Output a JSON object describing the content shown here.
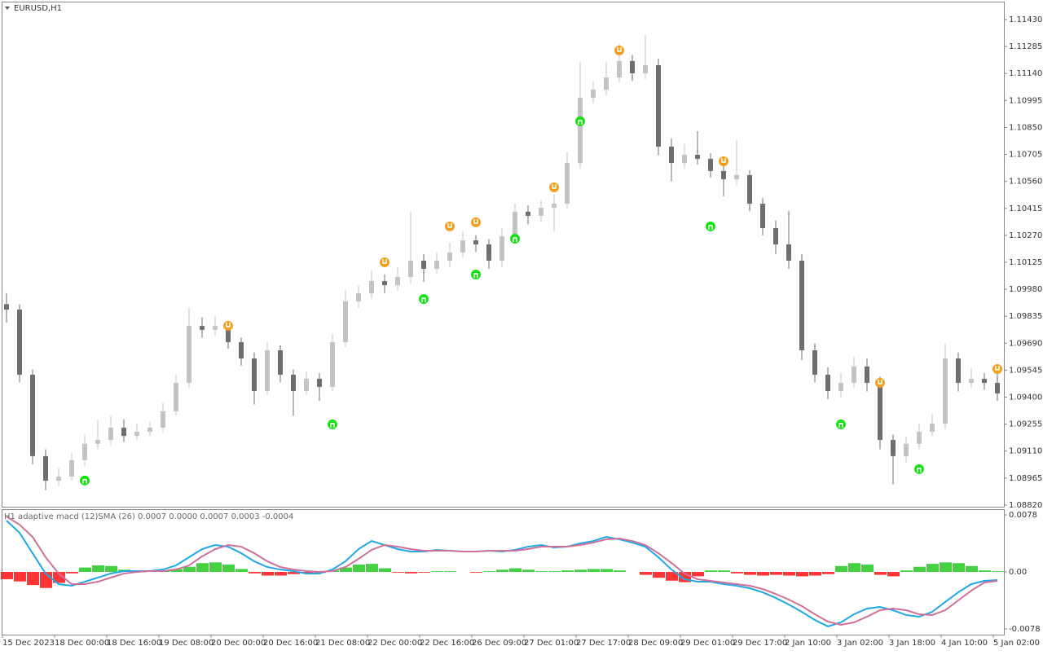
{
  "chart_data": [
    {
      "type": "candlestick",
      "title": "EURUSD,H1",
      "colors": {
        "up": "#c4c4c4",
        "down": "#6f6f6f",
        "signal_up": "#16e316",
        "signal_down": "#f0a020"
      },
      "ylim": [
        1.08811,
        1.11522
      ],
      "yticks": [
        {
          "value": 1.0882,
          "label": "1.08820"
        },
        1.08965,
        {
          "value": 1.0911,
          "label": "1.09110"
        },
        1.09255,
        {
          "value": 1.094,
          "label": "1.09400"
        },
        1.09545,
        {
          "value": 1.0969,
          "label": "1.09690"
        },
        1.09835,
        {
          "value": 1.0998,
          "label": "1.09980"
        },
        1.10125,
        {
          "value": 1.1027,
          "label": "1.10270"
        },
        1.10415,
        {
          "value": 1.1056,
          "label": "1.10560"
        },
        1.10705,
        {
          "value": 1.1085,
          "label": "1.10850"
        },
        1.10995,
        {
          "value": 1.1114,
          "label": "1.11140"
        },
        1.11285,
        {
          "value": 1.1143,
          "label": "1.11430"
        }
      ],
      "candles": [
        [
          1.099,
          1.0996,
          1.098,
          1.09871
        ],
        [
          1.09871,
          1.099,
          1.0948,
          1.09521
        ],
        [
          1.09521,
          1.0955,
          1.0904,
          1.09083
        ],
        [
          1.09083,
          1.0912,
          1.089,
          1.08951
        ],
        [
          1.08951,
          1.0902,
          1.0892,
          1.08973
        ],
        [
          1.08973,
          1.091,
          1.0895,
          1.09061
        ],
        [
          1.09061,
          1.092,
          1.0903,
          1.09149
        ],
        [
          1.09149,
          1.0928,
          1.0912,
          1.0917
        ],
        [
          1.0917,
          1.093,
          1.0914,
          1.09236
        ],
        [
          1.09236,
          1.0928,
          1.0916,
          1.09192
        ],
        [
          1.09192,
          1.0926,
          1.0917,
          1.09214
        ],
        [
          1.09214,
          1.0927,
          1.0919,
          1.09236
        ],
        [
          1.09236,
          1.0937,
          1.0921,
          1.09324
        ],
        [
          1.09324,
          1.0952,
          1.093,
          1.09477
        ],
        [
          1.09477,
          1.0988,
          1.0945,
          1.09783
        ],
        [
          1.09783,
          1.0983,
          1.0972,
          1.09762
        ],
        [
          1.09762,
          1.0984,
          1.0973,
          1.09783
        ],
        [
          1.09783,
          1.0981,
          1.0966,
          1.09696
        ],
        [
          1.09696,
          1.0972,
          1.0957,
          1.09608
        ],
        [
          1.09608,
          1.0964,
          1.0936,
          1.09433
        ],
        [
          1.09433,
          1.097,
          1.0941,
          1.09652
        ],
        [
          1.09652,
          1.0968,
          1.0948,
          1.09521
        ],
        [
          1.09521,
          1.0955,
          1.093,
          1.09433
        ],
        [
          1.09433,
          1.0954,
          1.0941,
          1.09499
        ],
        [
          1.09499,
          1.0953,
          1.0938,
          1.09455
        ],
        [
          1.09455,
          1.0974,
          1.0943,
          1.09696
        ],
        [
          1.09696,
          1.0998,
          1.0967,
          1.09915
        ],
        [
          1.09915,
          1.1,
          1.0988,
          1.09959
        ],
        [
          1.09959,
          1.1008,
          1.0993,
          1.10024
        ],
        [
          1.10024,
          1.1006,
          1.0996,
          1.10002
        ],
        [
          1.10002,
          1.101,
          1.0997,
          1.10046
        ],
        [
          1.10046,
          1.104,
          1.1001,
          1.10134
        ],
        [
          1.10134,
          1.1017,
          1.1002,
          1.1009
        ],
        [
          1.1009,
          1.1018,
          1.1006,
          1.10134
        ],
        [
          1.10134,
          1.1023,
          1.101,
          1.10178
        ],
        [
          1.10178,
          1.1029,
          1.1015,
          1.10243
        ],
        [
          1.10243,
          1.1027,
          1.1018,
          1.10221
        ],
        [
          1.10221,
          1.1025,
          1.1009,
          1.10134
        ],
        [
          1.10134,
          1.1031,
          1.101,
          1.10265
        ],
        [
          1.10265,
          1.1044,
          1.1024,
          1.10397
        ],
        [
          1.10397,
          1.1043,
          1.1033,
          1.10375
        ],
        [
          1.10375,
          1.1046,
          1.1034,
          1.10418
        ],
        [
          1.10418,
          1.1049,
          1.1029,
          1.1044
        ],
        [
          1.1044,
          1.1072,
          1.1041,
          1.10659
        ],
        [
          1.10659,
          1.112,
          1.1063,
          1.1101
        ],
        [
          1.1101,
          1.111,
          1.1098,
          1.11053
        ],
        [
          1.11053,
          1.112,
          1.1102,
          1.11119
        ],
        [
          1.11119,
          1.113,
          1.1109,
          1.11207
        ],
        [
          1.11207,
          1.1124,
          1.111,
          1.11141
        ],
        [
          1.11141,
          1.1135,
          1.1111,
          1.11185
        ],
        [
          1.11185,
          1.1122,
          1.107,
          1.10747
        ],
        [
          1.10747,
          1.1079,
          1.1056,
          1.10659
        ],
        [
          1.10659,
          1.1076,
          1.1063,
          1.10703
        ],
        [
          1.10703,
          1.1083,
          1.1065,
          1.10681
        ],
        [
          1.10681,
          1.1071,
          1.1058,
          1.10616
        ],
        [
          1.10616,
          1.1065,
          1.1048,
          1.10572
        ],
        [
          1.10572,
          1.1078,
          1.1054,
          1.10594
        ],
        [
          1.10594,
          1.1062,
          1.104,
          1.1044
        ],
        [
          1.1044,
          1.1047,
          1.1027,
          1.10309
        ],
        [
          1.10309,
          1.1035,
          1.1017,
          1.10221
        ],
        [
          1.10221,
          1.104,
          1.1009,
          1.10134
        ],
        [
          1.10134,
          1.1017,
          1.096,
          1.09652
        ],
        [
          1.09652,
          1.0969,
          1.0948,
          1.09521
        ],
        [
          1.09521,
          1.0956,
          1.0939,
          1.09433
        ],
        [
          1.09433,
          1.0953,
          1.094,
          1.09477
        ],
        [
          1.09477,
          1.0962,
          1.0945,
          1.09565
        ],
        [
          1.09565,
          1.0961,
          1.0943,
          1.09477
        ],
        [
          1.09477,
          1.0951,
          1.0912,
          1.0917
        ],
        [
          1.0917,
          1.092,
          1.0893,
          1.09083
        ],
        [
          1.09083,
          1.0919,
          1.0905,
          1.09149
        ],
        [
          1.09149,
          1.0926,
          1.0912,
          1.09214
        ],
        [
          1.09214,
          1.0931,
          1.0919,
          1.09258
        ],
        [
          1.09258,
          1.0969,
          1.0923,
          1.09608
        ],
        [
          1.09608,
          1.0964,
          1.0943,
          1.09477
        ],
        [
          1.09477,
          1.0956,
          1.0945,
          1.09499
        ],
        [
          1.09499,
          1.0953,
          1.0944,
          1.09477
        ],
        [
          1.09477,
          1.0954,
          1.0938,
          1.0942
        ]
      ],
      "signals_up": [
        {
          "x": 6,
          "price": 1.08952
        },
        {
          "x": 25,
          "price": 1.09254
        },
        {
          "x": 32,
          "price": 1.09928
        },
        {
          "x": 36,
          "price": 1.10059
        },
        {
          "x": 39,
          "price": 1.10252
        },
        {
          "x": 44,
          "price": 1.10883
        },
        {
          "x": 54,
          "price": 1.10318
        },
        {
          "x": 64,
          "price": 1.09254
        },
        {
          "x": 70,
          "price": 1.09013
        }
      ],
      "signals_down": [
        {
          "x": 17,
          "price": 1.09784
        },
        {
          "x": 29,
          "price": 1.10125
        },
        {
          "x": 34,
          "price": 1.10318
        },
        {
          "x": 36,
          "price": 1.1034
        },
        {
          "x": 42,
          "price": 1.10528
        },
        {
          "x": 47,
          "price": 1.11264
        },
        {
          "x": 55,
          "price": 1.10668
        },
        {
          "x": 67,
          "price": 1.09477
        },
        {
          "x": 76,
          "price": 1.09551
        }
      ]
    },
    {
      "type": "macd",
      "title": "H1  adaptive macd  (12)SMA (26) 0.0007 0.0000 0.0007 0.0003 -0.0004",
      "ylim": [
        -0.00858,
        0.00847
      ],
      "yticks": [
        0.0078,
        {
          "value": 0,
          "label": "0.00"
        },
        -0.0078
      ],
      "histogram": {
        "positive": "#22c822",
        "negative": "#ff1010",
        "values": [
          -0.001,
          -0.0013,
          -0.0018,
          -0.0022,
          -0.0015,
          -0.0002,
          0.0006,
          0.0009,
          0.0008,
          0.0003,
          0.0001,
          0.0001,
          0.0002,
          0.0004,
          0.0007,
          0.0012,
          0.0013,
          0.001,
          0.0004,
          -0.0002,
          -0.0005,
          -0.0005,
          -0.0003,
          -0.0002,
          -0.0001,
          0.0002,
          0.0006,
          0.001,
          0.0011,
          0.0005,
          -0.0001,
          -0.0002,
          -0.0001,
          0.0001,
          0.0001,
          0,
          -0.0001,
          0.0001,
          0.0003,
          0.0005,
          0.0003,
          0.0001,
          0.0001,
          0.0002,
          0.0003,
          0.0004,
          0.0004,
          0.0002,
          0,
          -0.0004,
          -0.0008,
          -0.0012,
          -0.0014,
          -0.0006,
          0.0002,
          0.0002,
          -0.0002,
          -0.0004,
          -0.0005,
          -0.0004,
          -0.0005,
          -0.0006,
          -0.0005,
          -0.0003,
          0.0008,
          0.0012,
          0.001,
          -0.0004,
          -0.0006,
          0.0002,
          0.0007,
          0.0011,
          0.0013,
          0.0012,
          0.0008,
          0.0002,
          0.0001
        ]
      },
      "series": [
        {
          "color": "#1fa8e8",
          "values": [
            0.00702,
            0.00535,
            0.00256,
            -0.00022,
            -0.00167,
            -0.00189,
            -0.00134,
            -0.00078,
            -0.00022,
            0.00011,
            0.00011,
            0.00011,
            0.00033,
            0.00089,
            0.00201,
            0.00312,
            0.00368,
            0.00345,
            0.00256,
            0.00145,
            0.00067,
            0.00033,
            0.00011,
            -0.00022,
            -0.00022,
            0.00033,
            0.00145,
            0.00312,
            0.00423,
            0.00368,
            0.00312,
            0.00279,
            0.00279,
            0.00301,
            0.0029,
            0.00279,
            0.00279,
            0.0029,
            0.00279,
            0.00301,
            0.00345,
            0.00368,
            0.00334,
            0.00345,
            0.0039,
            0.00423,
            0.00479,
            0.00446,
            0.00401,
            0.00345,
            0.00201,
            0.00033,
            -0.001,
            -0.00134,
            -0.00134,
            -0.00167,
            -0.00189,
            -0.00223,
            -0.00279,
            -0.00356,
            -0.00446,
            -0.00546,
            -0.00657,
            -0.00746,
            -0.00691,
            -0.00579,
            -0.00501,
            -0.00479,
            -0.00524,
            -0.0059,
            -0.00613,
            -0.00546,
            -0.00412,
            -0.00279,
            -0.00167,
            -0.00123,
            -0.00111
          ]
        },
        {
          "color": "#d0709a",
          "values": [
            0.00757,
            0.00646,
            0.00479,
            0.00201,
            -0.00022,
            -0.00167,
            -0.00167,
            -0.00134,
            -0.00078,
            -0.00022,
            0,
            0.00011,
            0.00011,
            0.00033,
            0.00089,
            0.00212,
            0.00312,
            0.00368,
            0.00345,
            0.00256,
            0.00145,
            0.00067,
            0.00033,
            0.00011,
            0,
            0.00011,
            0.00067,
            0.00178,
            0.00301,
            0.00368,
            0.00345,
            0.00312,
            0.0029,
            0.0029,
            0.0029,
            0.00279,
            0.00279,
            0.0029,
            0.0029,
            0.0029,
            0.00312,
            0.00345,
            0.00345,
            0.00345,
            0.00368,
            0.00401,
            0.00446,
            0.00457,
            0.00423,
            0.00368,
            0.00256,
            0.00123,
            -0.00022,
            -0.001,
            -0.00123,
            -0.00145,
            -0.00167,
            -0.00189,
            -0.00234,
            -0.00301,
            -0.00379,
            -0.00468,
            -0.00579,
            -0.0068,
            -0.00724,
            -0.00691,
            -0.00613,
            -0.00524,
            -0.00501,
            -0.00524,
            -0.00579,
            -0.0059,
            -0.00524,
            -0.0039,
            -0.00256,
            -0.00145,
            -0.00123
          ]
        }
      ],
      "x_labels": [
        "15 Dec 2023",
        "18 Dec 00:00",
        "18 Dec 16:00",
        "19 Dec 08:00",
        "20 Dec 00:00",
        "20 Dec 16:00",
        "21 Dec 08:00",
        "22 Dec 00:00",
        "22 Dec 16:00",
        "26 Dec 09:00",
        "27 Dec 01:00",
        "27 Dec 17:00",
        "28 Dec 09:00",
        "29 Dec 01:00",
        "29 Dec 17:00",
        "2 Jan 10:00",
        "3 Jan 02:00",
        "3 Jan 18:00",
        "4 Jan 10:00",
        "5 Jan 02:00"
      ]
    }
  ]
}
